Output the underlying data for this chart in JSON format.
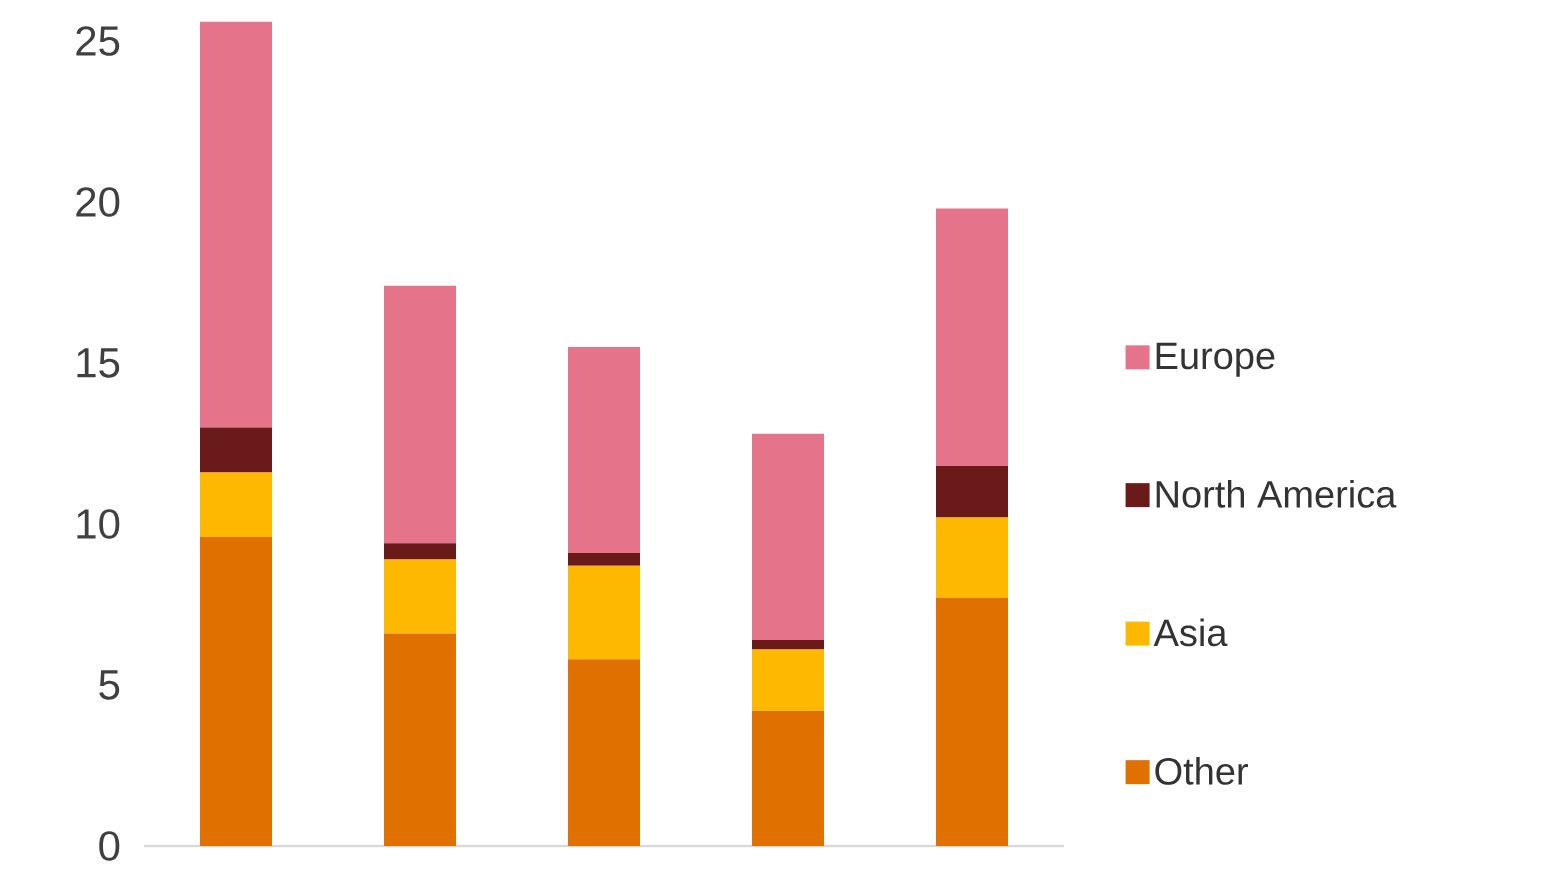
{
  "chart_data": {
    "type": "bar",
    "stacked": true,
    "categories": [
      null,
      null,
      null,
      null,
      null
    ],
    "series": [
      {
        "name": "Other",
        "color": "#e07000",
        "values": [
          9.6,
          6.6,
          5.8,
          4.2,
          7.7
        ]
      },
      {
        "name": "Asia",
        "color": "#ffb800",
        "values": [
          2.0,
          2.3,
          2.9,
          1.9,
          2.5
        ]
      },
      {
        "name": "North America",
        "color": "#6b1a1a",
        "values": [
          1.4,
          0.5,
          0.4,
          0.3,
          1.6
        ]
      },
      {
        "name": "Europe",
        "color": "#e5738a",
        "values": [
          12.6,
          8.0,
          6.4,
          6.4,
          8.0
        ]
      }
    ],
    "ylim": [
      0,
      26
    ],
    "yticks": [
      0,
      5,
      10,
      15,
      20,
      25
    ],
    "grid": false,
    "legend": "right"
  }
}
